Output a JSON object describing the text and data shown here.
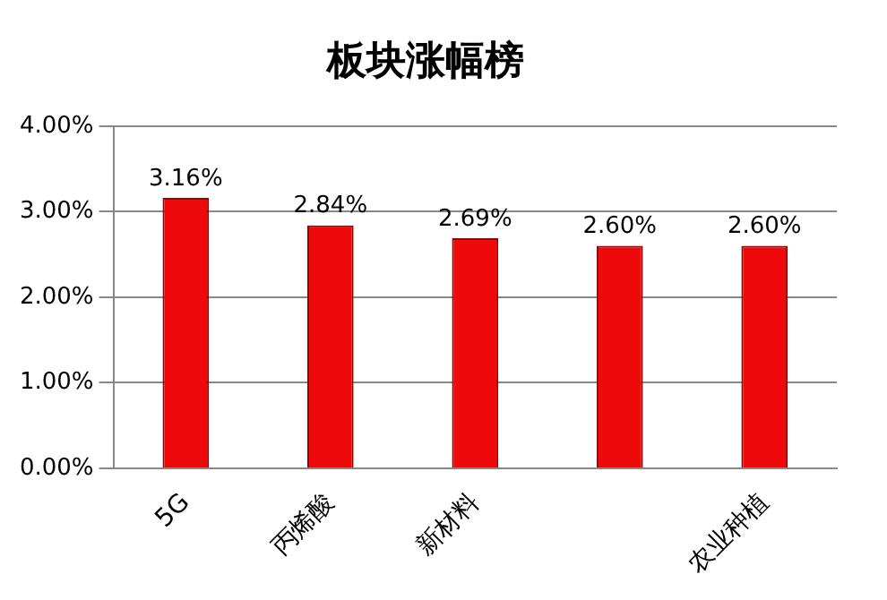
{
  "chart_data": {
    "type": "bar",
    "title": "板块涨幅榜",
    "categories": [
      "5G",
      "丙烯酸",
      "新材料",
      null,
      "农业种植"
    ],
    "values": [
      3.16,
      2.84,
      2.69,
      2.6,
      2.6
    ],
    "value_labels": [
      "3.16%",
      "2.84%",
      "2.69%",
      "2.60%",
      "2.60%"
    ],
    "color": "#ee0a0a",
    "ylim": [
      0,
      4
    ],
    "yticks": [
      {
        "value": 0,
        "label": "0.00%"
      },
      {
        "value": 1,
        "label": "1.00%"
      },
      {
        "value": 2,
        "label": "2.00%"
      },
      {
        "value": 3,
        "label": "3.00%"
      },
      {
        "value": 4,
        "label": "4.00%"
      }
    ],
    "grid": "y",
    "legend": false
  }
}
